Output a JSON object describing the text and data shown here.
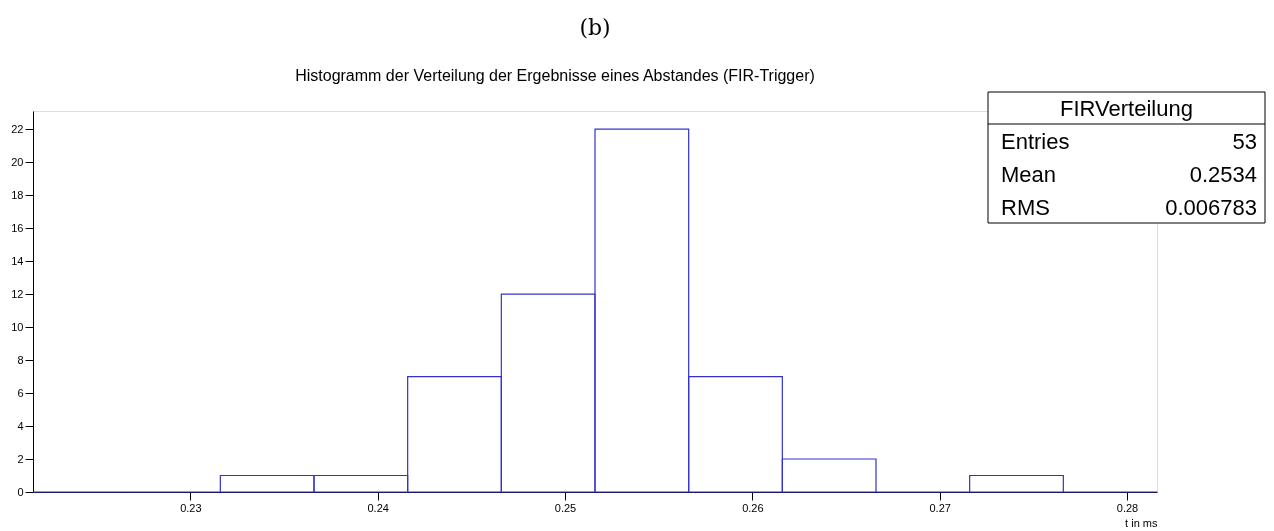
{
  "chart_data": {
    "type": "histogram",
    "title": "Histogramm der Verteilung der Ergebnisse eines Abstandes (FIR-Trigger)",
    "xlabel": "t in ms",
    "bins": [
      0.2216,
      0.2266,
      0.2316,
      0.2366,
      0.2416,
      0.2466,
      0.2516,
      0.2566,
      0.2616,
      0.2666,
      0.2716,
      0.2766,
      0.2816
    ],
    "values": [
      0,
      0,
      1,
      1,
      7,
      12,
      22,
      7,
      2,
      0,
      1,
      0
    ],
    "color": "#3333cc",
    "xlim": [
      0.2216,
      0.2816
    ],
    "xticks": [
      0.23,
      0.24,
      0.25,
      0.26,
      0.27,
      0.28
    ],
    "ylim": [
      0,
      23.1
    ],
    "yticks": [
      0,
      2,
      4,
      6,
      8,
      10,
      12,
      14,
      16,
      18,
      20,
      22
    ],
    "grid": false,
    "annotations": [
      "(b)",
      "FIRVerteilung",
      "Entries",
      "53",
      "Mean",
      "0.2534",
      "RMS",
      "0.006783"
    ]
  }
}
